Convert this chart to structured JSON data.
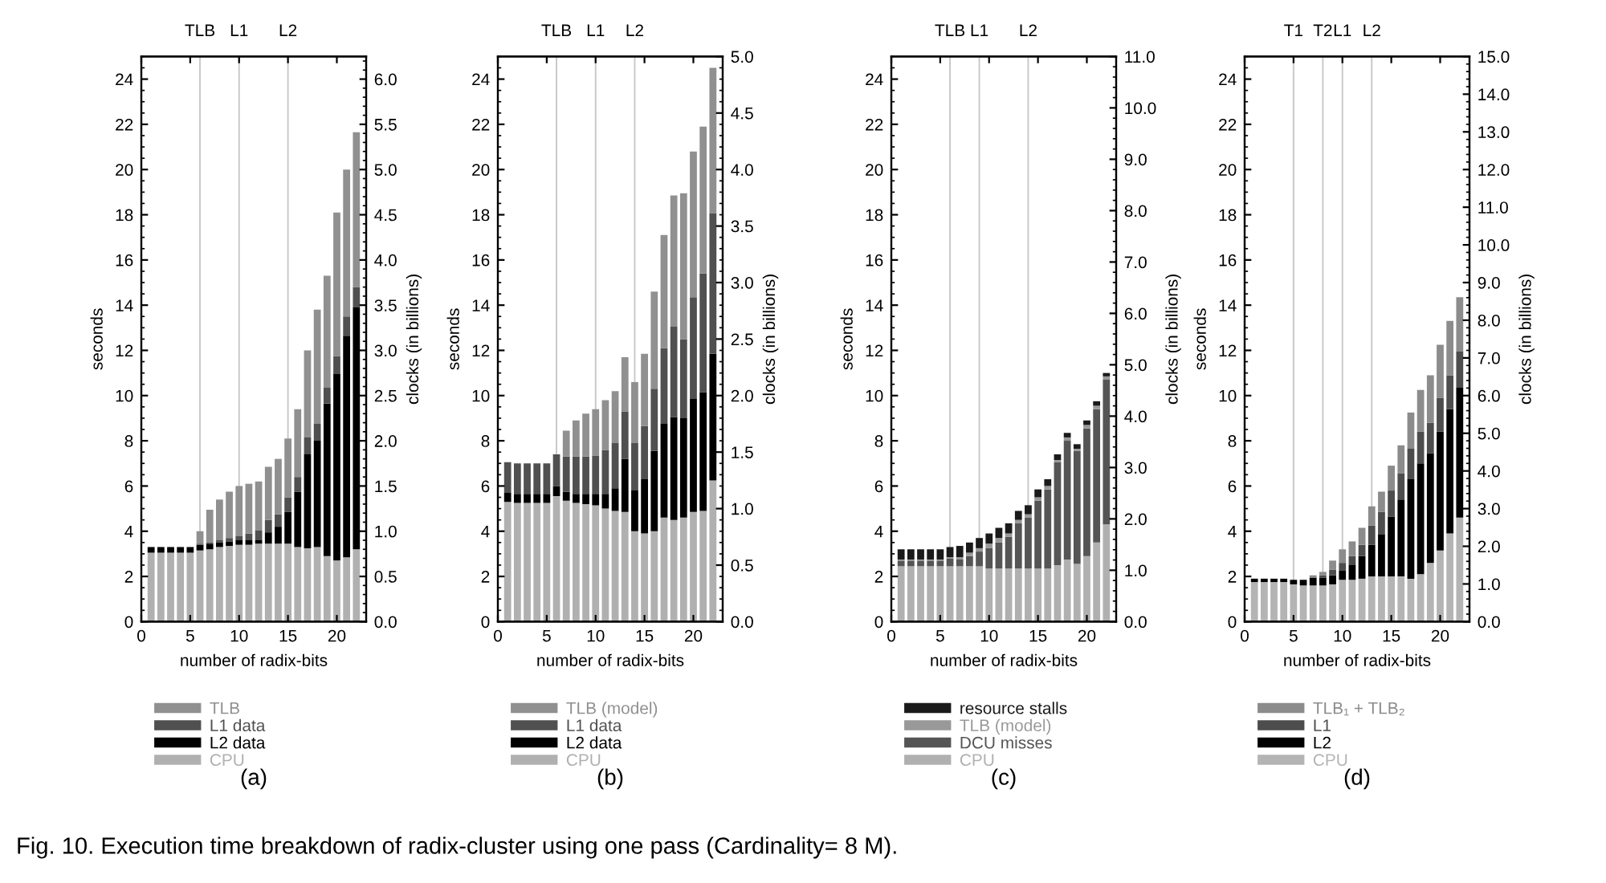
{
  "chart_data": [
    {
      "type": "bar",
      "stacked": true,
      "legend": "bottom",
      "grid": false,
      "xlabel": "number of radix-bits",
      "ylabel": "seconds",
      "y2label": "clocks (in billions)",
      "x": [
        1,
        2,
        3,
        4,
        5,
        6,
        7,
        8,
        9,
        10,
        11,
        12,
        13,
        14,
        15,
        16,
        17,
        18,
        19,
        20,
        21,
        22
      ],
      "xlim": [
        0,
        23
      ],
      "xticks": [
        0,
        5,
        10,
        15,
        20
      ],
      "ylim": [
        0,
        25
      ],
      "yticks": [
        0,
        2,
        4,
        6,
        8,
        10,
        12,
        14,
        16,
        18,
        20,
        22,
        24
      ],
      "y2lim": [
        0,
        6.25
      ],
      "y2ticks": [
        {
          "value": 0,
          "label": "0.0"
        },
        {
          "value": 0.5,
          "label": "0.5"
        },
        {
          "value": 1,
          "label": "1.0"
        },
        {
          "value": 1.5,
          "label": "1.5"
        },
        {
          "value": 2,
          "label": "2.0"
        },
        {
          "value": 2.5,
          "label": "2.5"
        },
        {
          "value": 3,
          "label": "3.0"
        },
        {
          "value": 3.5,
          "label": "3.5"
        },
        {
          "value": 4,
          "label": "4.0"
        },
        {
          "value": 4.5,
          "label": "4.5"
        },
        {
          "value": 5,
          "label": "5.0"
        },
        {
          "value": 5.5,
          "label": "5.5"
        },
        {
          "value": 6,
          "label": "6.0"
        }
      ],
      "ref_lines": [
        {
          "axis": "x",
          "value": 6,
          "label": "TLB",
          "color": "#c8c8c8"
        },
        {
          "axis": "x",
          "value": 10,
          "label": "L1",
          "color": "#c8c8c8"
        },
        {
          "axis": "x",
          "value": 15,
          "label": "L2",
          "color": "#c8c8c8"
        }
      ],
      "series": [
        {
          "name": "CPU",
          "color": "#b0b0b0",
          "values": [
            3.05,
            3.05,
            3.05,
            3.05,
            3.05,
            3.15,
            3.2,
            3.3,
            3.35,
            3.4,
            3.4,
            3.45,
            3.45,
            3.45,
            3.45,
            3.3,
            3.25,
            3.3,
            2.9,
            2.7,
            2.85,
            3.2
          ]
        },
        {
          "name": "L2 data",
          "color": "#000000",
          "values": [
            0.25,
            0.25,
            0.25,
            0.25,
            0.25,
            0.25,
            0.25,
            0.2,
            0.2,
            0.2,
            0.2,
            0.15,
            0.5,
            0.75,
            1.4,
            2.45,
            4.15,
            4.7,
            6.75,
            8.25,
            9.8,
            10.7
          ]
        },
        {
          "name": "L1 data",
          "color": "#505050",
          "values": [
            0,
            0,
            0,
            0,
            0,
            0.05,
            0.05,
            0.1,
            0.15,
            0.2,
            0.3,
            0.45,
            0.55,
            0.55,
            0.65,
            0.65,
            0.75,
            0.75,
            0.7,
            0.8,
            0.85,
            0.9
          ]
        },
        {
          "name": "TLB",
          "color": "#909090",
          "values": [
            0,
            0,
            0,
            0,
            0,
            0.55,
            1.45,
            1.8,
            2.05,
            2.2,
            2.2,
            2.15,
            2.35,
            2.45,
            2.6,
            3.0,
            3.85,
            5.05,
            4.95,
            6.35,
            6.5,
            6.85
          ]
        }
      ],
      "annotations": [
        "(a)"
      ]
    },
    {
      "type": "bar",
      "stacked": true,
      "legend": "bottom",
      "grid": false,
      "xlabel": "number of radix-bits",
      "ylabel": "seconds",
      "y2label": "clocks (in billions)",
      "x": [
        1,
        2,
        3,
        4,
        5,
        6,
        7,
        8,
        9,
        10,
        11,
        12,
        13,
        14,
        15,
        16,
        17,
        18,
        19,
        20,
        21,
        22
      ],
      "xlim": [
        0,
        23
      ],
      "xticks": [
        0,
        5,
        10,
        15,
        20
      ],
      "ylim": [
        0,
        25
      ],
      "yticks": [
        0,
        2,
        4,
        6,
        8,
        10,
        12,
        14,
        16,
        18,
        20,
        22,
        24
      ],
      "y2lim": [
        0,
        5
      ],
      "y2ticks": [
        {
          "value": 0,
          "label": "0.0"
        },
        {
          "value": 0.5,
          "label": "0.5"
        },
        {
          "value": 1,
          "label": "1.0"
        },
        {
          "value": 1.5,
          "label": "1.5"
        },
        {
          "value": 2,
          "label": "2.0"
        },
        {
          "value": 2.5,
          "label": "2.5"
        },
        {
          "value": 3,
          "label": "3.0"
        },
        {
          "value": 3.5,
          "label": "3.5"
        },
        {
          "value": 4,
          "label": "4.0"
        },
        {
          "value": 4.5,
          "label": "4.5"
        },
        {
          "value": 5,
          "label": "5.0"
        }
      ],
      "ref_lines": [
        {
          "axis": "x",
          "value": 6,
          "label": "TLB",
          "color": "#c8c8c8"
        },
        {
          "axis": "x",
          "value": 10,
          "label": "L1",
          "color": "#c8c8c8"
        },
        {
          "axis": "x",
          "value": 14,
          "label": "L2",
          "color": "#c8c8c8"
        }
      ],
      "series": [
        {
          "name": "CPU",
          "color": "#b0b0b0",
          "values": [
            5.3,
            5.25,
            5.25,
            5.25,
            5.25,
            5.55,
            5.35,
            5.25,
            5.2,
            5.15,
            5.0,
            4.9,
            4.85,
            4.0,
            3.9,
            4.0,
            4.6,
            4.5,
            4.6,
            4.85,
            4.9,
            6.25
          ]
        },
        {
          "name": "L2 data",
          "color": "#000000",
          "values": [
            0.4,
            0.4,
            0.4,
            0.4,
            0.4,
            0.45,
            0.4,
            0.4,
            0.45,
            0.5,
            0.65,
            1.0,
            2.35,
            1.8,
            2.4,
            3.55,
            4.15,
            4.55,
            4.4,
            5.0,
            5.25,
            5.6
          ]
        },
        {
          "name": "L1 data",
          "color": "#505050",
          "values": [
            1.35,
            1.35,
            1.35,
            1.35,
            1.35,
            1.4,
            1.55,
            1.65,
            1.65,
            1.7,
            1.95,
            2.0,
            2.1,
            2.1,
            2.35,
            2.75,
            3.35,
            4.0,
            3.5,
            4.5,
            5.25,
            6.2
          ]
        },
        {
          "name": "TLB (model)",
          "color": "#909090",
          "values": [
            0,
            0,
            0,
            0,
            0,
            0,
            1.15,
            1.6,
            1.9,
            2.05,
            2.2,
            2.3,
            2.4,
            2.7,
            3.2,
            4.3,
            5.0,
            5.8,
            6.45,
            6.45,
            6.5,
            6.45
          ]
        }
      ],
      "annotations": [
        "(b)"
      ]
    },
    {
      "type": "bar",
      "stacked": true,
      "legend": "bottom",
      "grid": false,
      "xlabel": "number of radix-bits",
      "ylabel": "seconds",
      "y2label": "clocks (in billions)",
      "x": [
        1,
        2,
        3,
        4,
        5,
        6,
        7,
        8,
        9,
        10,
        11,
        12,
        13,
        14,
        15,
        16,
        17,
        18,
        19,
        20,
        21,
        22
      ],
      "xlim": [
        0,
        23
      ],
      "xticks": [
        0,
        5,
        10,
        15,
        20
      ],
      "ylim": [
        0,
        25
      ],
      "yticks": [
        0,
        2,
        4,
        6,
        8,
        10,
        12,
        14,
        16,
        18,
        20,
        22,
        24
      ],
      "y2lim": [
        0,
        11
      ],
      "y2ticks": [
        {
          "value": 0,
          "label": "0.0"
        },
        {
          "value": 1,
          "label": "1.0"
        },
        {
          "value": 2,
          "label": "2.0"
        },
        {
          "value": 3,
          "label": "3.0"
        },
        {
          "value": 4,
          "label": "4.0"
        },
        {
          "value": 5,
          "label": "5.0"
        },
        {
          "value": 6,
          "label": "6.0"
        },
        {
          "value": 7,
          "label": "7.0"
        },
        {
          "value": 8,
          "label": "8.0"
        },
        {
          "value": 9,
          "label": "9.0"
        },
        {
          "value": 10,
          "label": "10.0"
        },
        {
          "value": 11,
          "label": "11.0"
        }
      ],
      "ref_lines": [
        {
          "axis": "x",
          "value": 6,
          "label": "TLB",
          "color": "#c8c8c8"
        },
        {
          "axis": "x",
          "value": 9,
          "label": "L1",
          "color": "#c8c8c8"
        },
        {
          "axis": "x",
          "value": 14,
          "label": "L2",
          "color": "#c8c8c8"
        }
      ],
      "series": [
        {
          "name": "CPU",
          "color": "#b0b0b0",
          "values": [
            2.45,
            2.45,
            2.45,
            2.45,
            2.45,
            2.45,
            2.45,
            2.45,
            2.45,
            2.35,
            2.35,
            2.35,
            2.35,
            2.35,
            2.35,
            2.35,
            2.5,
            2.75,
            2.55,
            2.9,
            3.5,
            4.3
          ]
        },
        {
          "name": "DCU misses",
          "color": "#555555",
          "values": [
            0.25,
            0.25,
            0.25,
            0.25,
            0.25,
            0.35,
            0.3,
            0.45,
            0.65,
            0.9,
            1.15,
            1.4,
            2.0,
            2.25,
            3.0,
            3.5,
            4.55,
            5.25,
            5.0,
            5.65,
            5.9,
            6.4
          ]
        },
        {
          "name": "TLB (model)",
          "color": "#999999",
          "values": [
            0.05,
            0.05,
            0.05,
            0.05,
            0.05,
            0.05,
            0.1,
            0.15,
            0.15,
            0.2,
            0.2,
            0.15,
            0.15,
            0.15,
            0.15,
            0.15,
            0.1,
            0.15,
            0.1,
            0.15,
            0.15,
            0.15
          ]
        },
        {
          "name": "resource stalls",
          "color": "#1a1a1a",
          "values": [
            0.45,
            0.45,
            0.45,
            0.45,
            0.45,
            0.45,
            0.5,
            0.45,
            0.45,
            0.45,
            0.45,
            0.45,
            0.4,
            0.4,
            0.35,
            0.3,
            0.25,
            0.2,
            0.2,
            0.2,
            0.2,
            0.15
          ]
        }
      ],
      "annotations": [
        "(c)"
      ]
    },
    {
      "type": "bar",
      "stacked": true,
      "legend": "bottom",
      "grid": false,
      "xlabel": "number of radix-bits",
      "ylabel": "seconds",
      "y2label": "clocks (in billions)",
      "x": [
        1,
        2,
        3,
        4,
        5,
        6,
        7,
        8,
        9,
        10,
        11,
        12,
        13,
        14,
        15,
        16,
        17,
        18,
        19,
        20,
        21,
        22
      ],
      "xlim": [
        0,
        23
      ],
      "xticks": [
        0,
        5,
        10,
        15,
        20
      ],
      "ylim": [
        0,
        25
      ],
      "yticks": [
        0,
        2,
        4,
        6,
        8,
        10,
        12,
        14,
        16,
        18,
        20,
        22,
        24
      ],
      "y2lim": [
        0,
        15
      ],
      "y2ticks": [
        {
          "value": 0,
          "label": "0.0"
        },
        {
          "value": 1,
          "label": "1.0"
        },
        {
          "value": 2,
          "label": "2.0"
        },
        {
          "value": 3,
          "label": "3.0"
        },
        {
          "value": 4,
          "label": "4.0"
        },
        {
          "value": 5,
          "label": "5.0"
        },
        {
          "value": 6,
          "label": "6.0"
        },
        {
          "value": 7,
          "label": "7.0"
        },
        {
          "value": 8,
          "label": "8.0"
        },
        {
          "value": 9,
          "label": "9.0"
        },
        {
          "value": 10,
          "label": "10.0"
        },
        {
          "value": 11,
          "label": "11.0"
        },
        {
          "value": 12,
          "label": "12.0"
        },
        {
          "value": 13,
          "label": "13.0"
        },
        {
          "value": 14,
          "label": "14.0"
        },
        {
          "value": 15,
          "label": "15.0"
        }
      ],
      "ref_lines": [
        {
          "axis": "x",
          "value": 5,
          "label": "T1",
          "color": "#c8c8c8"
        },
        {
          "axis": "x",
          "value": 8,
          "label": "T2",
          "color": "#c8c8c8"
        },
        {
          "axis": "x",
          "value": 10,
          "label": "L1",
          "color": "#c8c8c8"
        },
        {
          "axis": "x",
          "value": 13,
          "label": "L2",
          "color": "#c8c8c8"
        }
      ],
      "series": [
        {
          "name": "CPU",
          "color": "#b4b4b4",
          "values": [
            1.75,
            1.75,
            1.75,
            1.75,
            1.65,
            1.6,
            1.6,
            1.6,
            1.65,
            1.85,
            1.85,
            1.9,
            2.0,
            2.0,
            2.0,
            2.0,
            1.9,
            2.1,
            2.6,
            3.15,
            3.9,
            4.6
          ]
        },
        {
          "name": "L2",
          "color": "#000000",
          "values": [
            0.15,
            0.15,
            0.15,
            0.15,
            0.2,
            0.25,
            0.35,
            0.35,
            0.4,
            0.4,
            0.65,
            1.0,
            1.4,
            1.85,
            2.65,
            3.4,
            4.4,
            4.9,
            4.85,
            5.25,
            5.5,
            5.75
          ]
        },
        {
          "name": "L1",
          "color": "#4d4d4d",
          "values": [
            0,
            0,
            0,
            0,
            0,
            0,
            0,
            0.1,
            0.25,
            0.35,
            0.4,
            0.5,
            0.85,
            1.0,
            1.15,
            1.15,
            1.35,
            1.4,
            1.35,
            1.5,
            1.5,
            1.6
          ]
        },
        {
          "name": "TLB₁ + TLB₂",
          "color": "#8c8c8c",
          "values": [
            0,
            0,
            0,
            0,
            0,
            0,
            0.1,
            0.15,
            0.4,
            0.6,
            0.65,
            0.75,
            0.85,
            0.9,
            1.1,
            1.25,
            1.6,
            1.85,
            2.1,
            2.35,
            2.4,
            2.4
          ]
        }
      ],
      "annotations": [
        "(d)",
        "Fig. 10. Execution time breakdown of radix-cluster using one pass (Cardinality= 8 M)."
      ]
    }
  ]
}
